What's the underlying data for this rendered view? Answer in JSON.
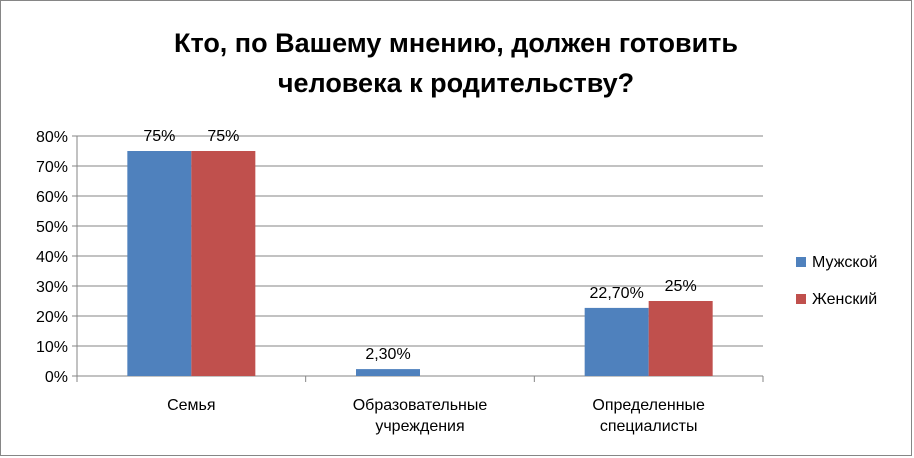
{
  "chart_data": {
    "type": "bar",
    "title": [
      "Кто, по Вашему мнению, должен готовить",
      "человека к родительству?"
    ],
    "categories": [
      [
        "Семья"
      ],
      [
        "Образовательные",
        "учреждения"
      ],
      [
        "Определенные",
        "специалисты"
      ]
    ],
    "series": [
      {
        "name": "Мужской",
        "color": "#4f81bd",
        "values": [
          75,
          2.3,
          22.7
        ],
        "labels": [
          "75%",
          "2,30%",
          "22,70%"
        ]
      },
      {
        "name": "Женский",
        "color": "#c0504d",
        "values": [
          75,
          0,
          25
        ],
        "labels": [
          "75%",
          "",
          "25%"
        ]
      }
    ],
    "ylim": [
      0,
      80
    ],
    "yticks": [
      "0%",
      "10%",
      "20%",
      "30%",
      "40%",
      "50%",
      "60%",
      "70%",
      "80%"
    ],
    "grid": true,
    "legend": "right"
  }
}
